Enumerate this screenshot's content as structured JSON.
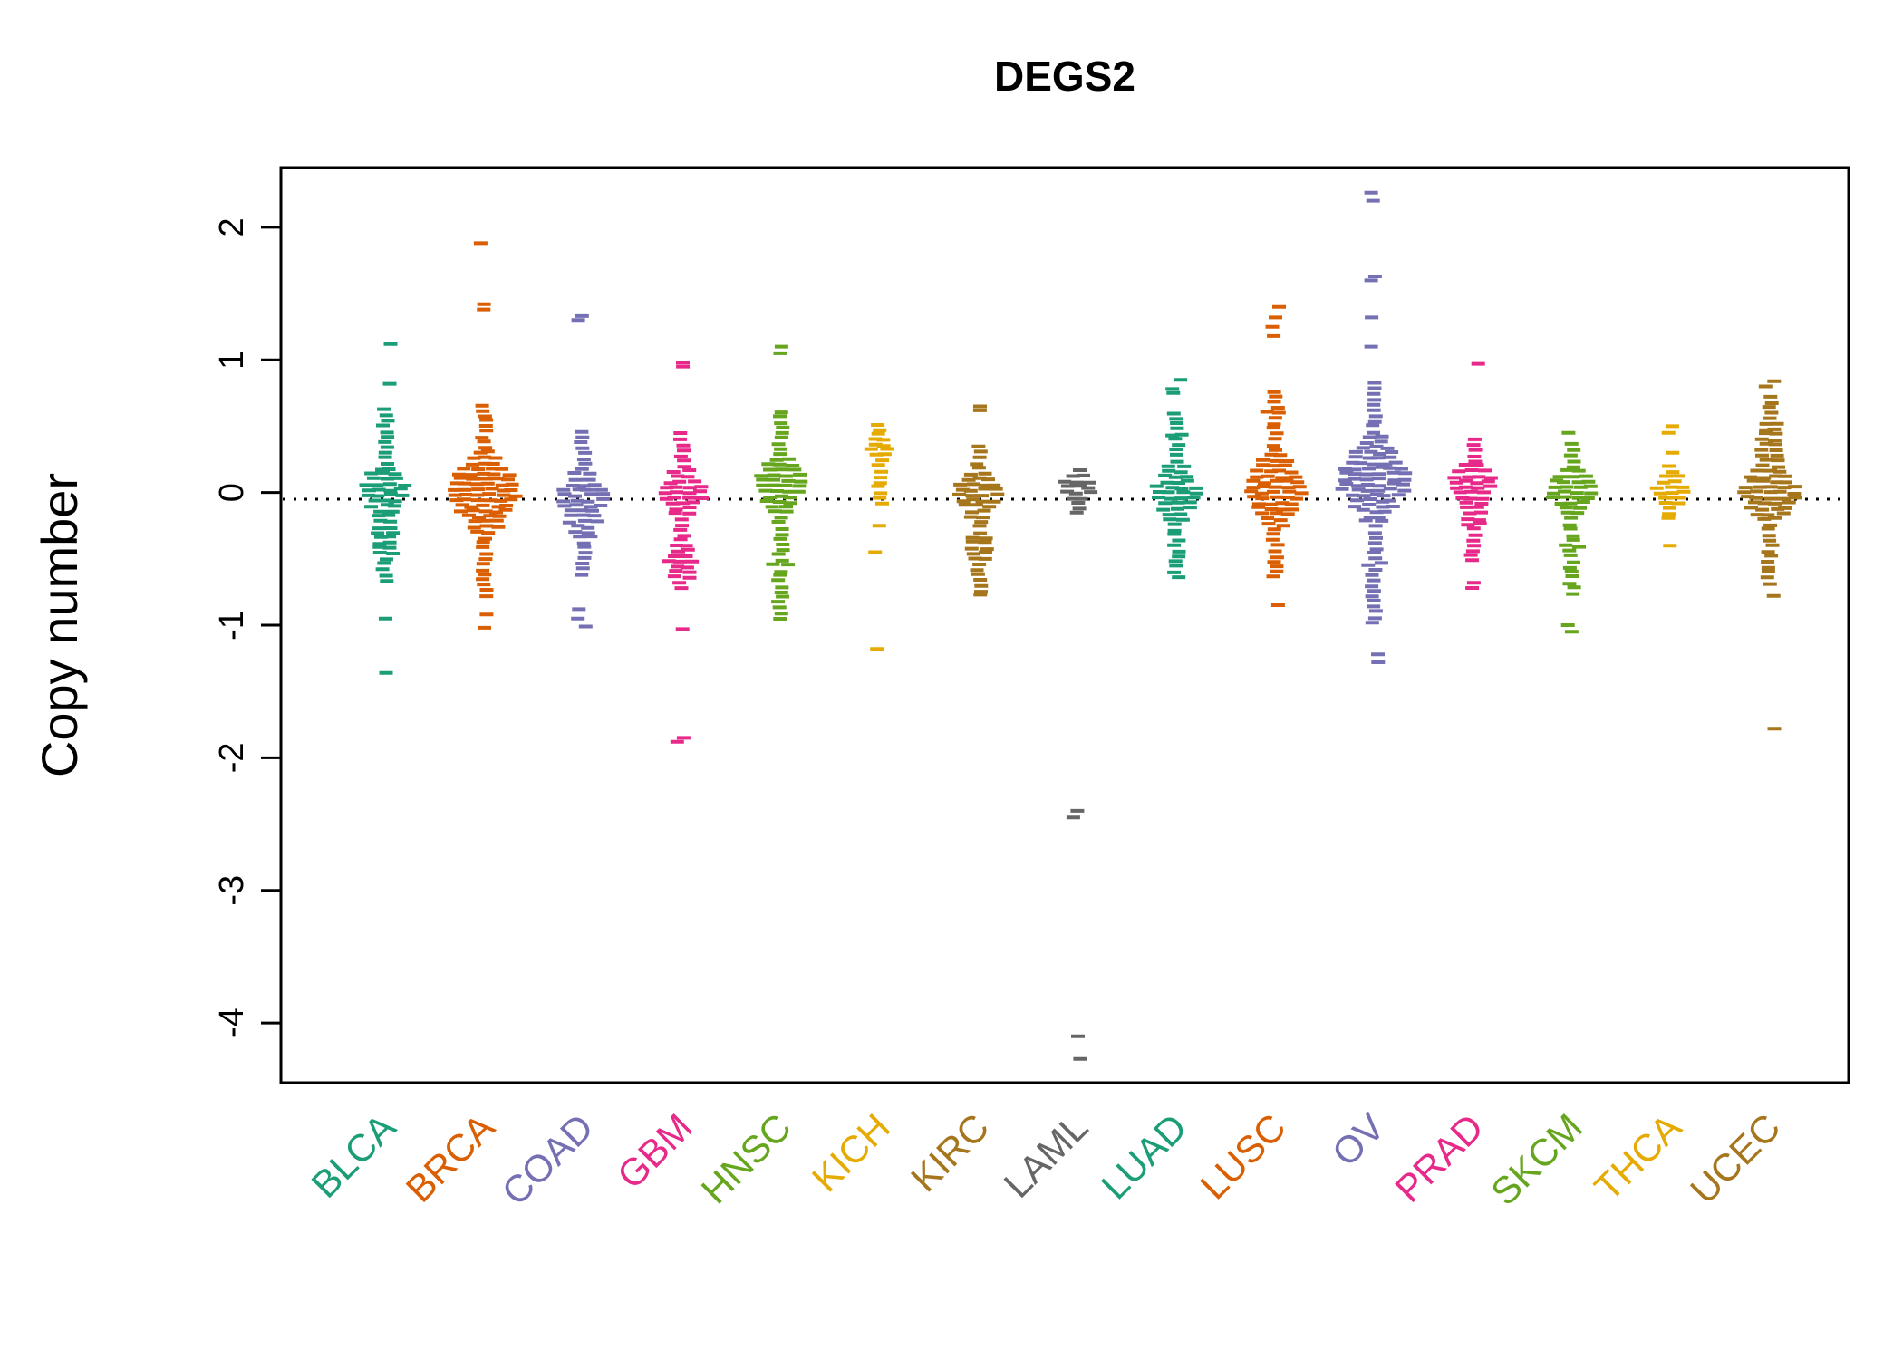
{
  "chart_data": {
    "type": "scatter",
    "subtype": "violin-strip-of-dashes",
    "title": "DEGS2",
    "ylabel": "Copy number",
    "xlabel": "",
    "ylim": [
      -4.45,
      2.45
    ],
    "yticks": [
      2,
      1,
      0,
      -1,
      -2,
      -3,
      -4
    ],
    "reference_line_y": -0.05,
    "grid": false,
    "legend": "none",
    "categories": [
      "BLCA",
      "BRCA",
      "COAD",
      "GBM",
      "HNSC",
      "KICH",
      "KIRC",
      "LAML",
      "LUAD",
      "LUSC",
      "OV",
      "PRAD",
      "SKCM",
      "THCA",
      "UCEC"
    ],
    "palette": [
      "#1B9E77",
      "#D95F02",
      "#7570B3",
      "#E7298A",
      "#66A61E",
      "#E6AB02",
      "#A6761D",
      "#666666"
    ],
    "series": [
      {
        "label": "BLCA",
        "color": "#1B9E77",
        "dense_low": -0.66,
        "dense_high": 0.62,
        "peak": 0.02,
        "sigma": 0.14,
        "max_count": 4,
        "bulge2": {
          "center": -0.4,
          "sigma": 0.12,
          "count": 2
        },
        "outliers": [
          0.82,
          1.12,
          -0.95,
          -1.36
        ]
      },
      {
        "label": "BRCA",
        "color": "#D95F02",
        "dense_low": -0.78,
        "dense_high": 0.66,
        "peak": 0.0,
        "sigma": 0.2,
        "max_count": 6,
        "outliers": [
          1.38,
          1.42,
          1.88,
          -0.92,
          -1.02
        ]
      },
      {
        "label": "COAD",
        "color": "#7570B3",
        "dense_low": -0.62,
        "dense_high": 0.46,
        "peak": -0.04,
        "sigma": 0.13,
        "max_count": 4,
        "bulge2": {
          "center": -0.3,
          "sigma": 0.1,
          "count": 1.5
        },
        "outliers": [
          1.3,
          1.33,
          -0.88,
          -0.95,
          -1.01
        ]
      },
      {
        "label": "GBM",
        "color": "#E7298A",
        "dense_low": -0.72,
        "dense_high": 0.46,
        "peak": 0.0,
        "sigma": 0.12,
        "max_count": 4,
        "bulge2": {
          "center": -0.52,
          "sigma": 0.12,
          "count": 2.5
        },
        "outliers": [
          0.95,
          0.98,
          -1.03,
          -1.85,
          -1.88
        ]
      },
      {
        "label": "HNSC",
        "color": "#66A61E",
        "dense_low": -0.95,
        "dense_high": 0.63,
        "peak": 0.06,
        "sigma": 0.16,
        "max_count": 4,
        "bulge2": {
          "center": -0.55,
          "sigma": 0.15,
          "count": 1.5
        },
        "outliers": [
          1.05,
          1.1
        ]
      },
      {
        "label": "KICH",
        "color": "#E6AB02",
        "dense_low": -0.08,
        "dense_high": 0.52,
        "peak": 0.34,
        "sigma": 0.12,
        "max_count": 2,
        "outliers": [
          -0.25,
          -0.45,
          -1.18
        ]
      },
      {
        "label": "KIRC",
        "color": "#A6761D",
        "dense_low": -0.78,
        "dense_high": 0.36,
        "peak": 0.0,
        "sigma": 0.12,
        "max_count": 4,
        "bulge2": {
          "center": -0.42,
          "sigma": 0.13,
          "count": 2
        },
        "outliers": [
          0.62,
          0.65
        ]
      },
      {
        "label": "LAML",
        "color": "#666666",
        "dense_low": -0.16,
        "dense_high": 0.18,
        "peak": 0.04,
        "sigma": 0.08,
        "max_count": 3,
        "outliers": [
          -2.4,
          -2.45,
          -4.1,
          -4.27
        ]
      },
      {
        "label": "LUAD",
        "color": "#1B9E77",
        "dense_low": -0.64,
        "dense_high": 0.62,
        "peak": 0.0,
        "sigma": 0.15,
        "max_count": 4,
        "bulge2": {
          "center": 0.45,
          "sigma": 0.1,
          "count": 1.5
        },
        "outliers": [
          0.75,
          0.78,
          0.85
        ]
      },
      {
        "label": "LUSC",
        "color": "#D95F02",
        "dense_low": -0.64,
        "dense_high": 0.78,
        "peak": 0.03,
        "sigma": 0.18,
        "max_count": 5,
        "bulge2": {
          "center": 0.6,
          "sigma": 0.12,
          "count": 1.5
        },
        "outliers": [
          1.18,
          1.25,
          1.32,
          1.4,
          -0.85
        ]
      },
      {
        "label": "OV",
        "color": "#7570B3",
        "dense_low": -0.98,
        "dense_high": 0.82,
        "peak": 0.1,
        "sigma": 0.2,
        "max_count": 6,
        "bulge2": {
          "center": -0.55,
          "sigma": 0.15,
          "count": 1.5
        },
        "outliers": [
          1.1,
          1.32,
          1.6,
          1.63,
          2.2,
          2.26,
          -1.22,
          -1.28
        ]
      },
      {
        "label": "PRAD",
        "color": "#E7298A",
        "dense_low": -0.52,
        "dense_high": 0.4,
        "peak": 0.07,
        "sigma": 0.12,
        "max_count": 4,
        "bulge2": {
          "center": -0.25,
          "sigma": 0.1,
          "count": 1.5
        },
        "outliers": [
          0.97,
          -0.68,
          -0.72
        ]
      },
      {
        "label": "SKCM",
        "color": "#66A61E",
        "dense_low": -0.76,
        "dense_high": 0.38,
        "peak": 0.02,
        "sigma": 0.12,
        "max_count": 4,
        "bulge2": {
          "center": -0.4,
          "sigma": 0.12,
          "count": 1.5
        },
        "outliers": [
          0.45,
          -1.0,
          -1.05
        ]
      },
      {
        "label": "THCA",
        "color": "#E6AB02",
        "dense_low": -0.2,
        "dense_high": 0.22,
        "peak": 0.02,
        "sigma": 0.09,
        "max_count": 3,
        "outliers": [
          0.3,
          0.45,
          0.5,
          -0.4
        ]
      },
      {
        "label": "UCEC",
        "color": "#A6761D",
        "dense_low": -0.68,
        "dense_high": 0.72,
        "peak": 0.0,
        "sigma": 0.15,
        "max_count": 5,
        "bulge2": {
          "center": 0.45,
          "sigma": 0.12,
          "count": 2
        },
        "outliers": [
          0.8,
          0.84,
          -0.78,
          -1.78
        ]
      }
    ]
  }
}
